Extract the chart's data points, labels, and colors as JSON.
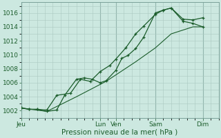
{
  "title": "Pression niveau de la mer( hPa )",
  "bg_color": "#cce8e0",
  "grid_color": "#aac8c0",
  "line_color": "#1a5c2a",
  "ylim": [
    1001.0,
    1017.5
  ],
  "yticks": [
    1002,
    1004,
    1006,
    1008,
    1010,
    1012,
    1014,
    1016
  ],
  "xlim": [
    0,
    10.0
  ],
  "day_labels": [
    "Jeu",
    "Lun",
    "Ven",
    "Sam",
    "Dim"
  ],
  "day_positions": [
    0.0,
    4.0,
    4.8,
    6.8,
    9.2
  ],
  "vline_positions": [
    0.0,
    4.0,
    4.8,
    6.8,
    9.2
  ],
  "series1_x": [
    0.0,
    0.4,
    0.8,
    1.3,
    1.8,
    2.2,
    2.8,
    3.2,
    3.6,
    4.0,
    4.3,
    4.8,
    5.1,
    5.4,
    5.8,
    6.2,
    6.8,
    7.2,
    7.6,
    8.2,
    8.7,
    9.2
  ],
  "series1_y": [
    1002.4,
    1002.2,
    1002.2,
    1001.9,
    1002.1,
    1004.2,
    1006.5,
    1006.7,
    1006.5,
    1006.0,
    1006.3,
    1007.8,
    1009.5,
    1009.9,
    1010.9,
    1012.5,
    1016.0,
    1016.4,
    1016.7,
    1015.1,
    1015.0,
    1015.3
  ],
  "series2_x": [
    0.0,
    0.4,
    0.8,
    1.3,
    1.8,
    2.5,
    3.0,
    3.5,
    4.0,
    4.5,
    4.8,
    5.3,
    5.8,
    6.2,
    6.8,
    7.2,
    7.6,
    8.2,
    8.7,
    9.2
  ],
  "series2_y": [
    1002.4,
    1002.2,
    1002.2,
    1002.1,
    1004.2,
    1004.5,
    1006.5,
    1006.2,
    1007.6,
    1008.5,
    1009.4,
    1011.0,
    1013.0,
    1014.1,
    1015.8,
    1016.4,
    1016.7,
    1014.8,
    1014.5,
    1014.0
  ],
  "series3_x": [
    0.0,
    1.3,
    2.8,
    4.3,
    5.8,
    6.8,
    7.6,
    8.7,
    9.2
  ],
  "series3_y": [
    1002.4,
    1001.9,
    1004.0,
    1006.2,
    1009.0,
    1011.0,
    1013.0,
    1014.0,
    1014.0
  ]
}
